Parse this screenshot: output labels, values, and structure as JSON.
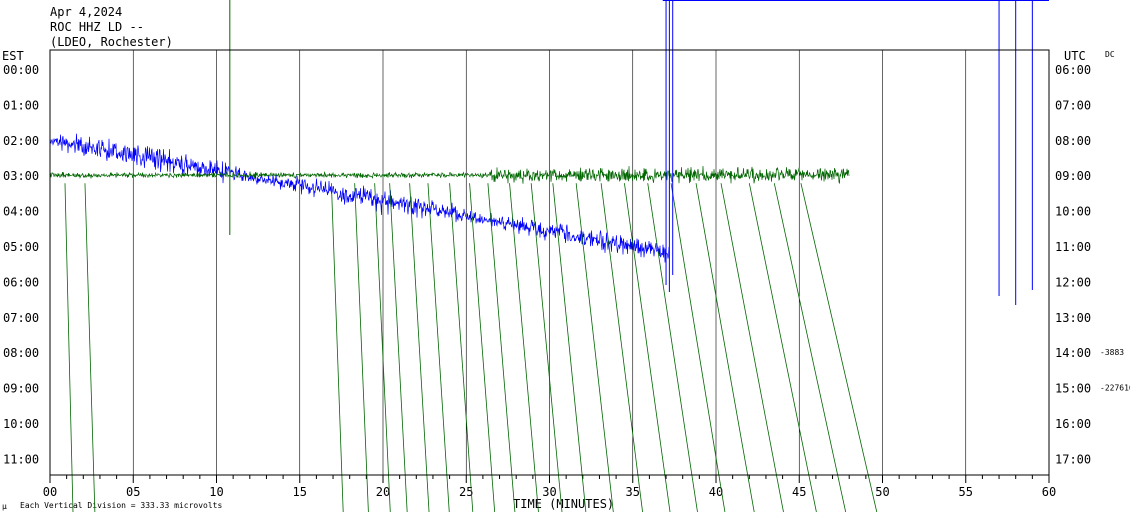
{
  "header": {
    "date": "Apr 4,2024",
    "station": "ROC HHZ LD --",
    "network": "(LDEO, Rochester)"
  },
  "colors": {
    "trace_a": "#0000ff",
    "trace_b": "#006600",
    "grid": "#000000",
    "background": "#ffffff"
  },
  "chart_data": {
    "type": "line",
    "title": "",
    "xlabel": "TIME (MINUTES)",
    "ylabel_left": "EST",
    "ylabel_right": "UTC",
    "dc_label": "DC",
    "footer": "Each Vertical Division =  333.33 microvolts",
    "footer_mark": "µ",
    "xlim": [
      0,
      60
    ],
    "x_ticks": [
      "00",
      "05",
      "10",
      "15",
      "20",
      "25",
      "30",
      "35",
      "40",
      "45",
      "50",
      "55",
      "60"
    ],
    "y_ticks_left": [
      "00:00",
      "01:00",
      "02:00",
      "03:00",
      "04:00",
      "05:00",
      "06:00",
      "07:00",
      "08:00",
      "09:00",
      "10:00",
      "11:00"
    ],
    "y_ticks_right": [
      "06:00",
      "07:00",
      "08:00",
      "09:00",
      "10:00",
      "11:00",
      "12:00",
      "13:00",
      "14:00",
      "15:00",
      "16:00",
      "17:00"
    ],
    "dc_offsets": [
      {
        "row": "08:00",
        "value": "-3883"
      },
      {
        "row": "09:00",
        "value": "-2276160"
      }
    ],
    "grid": true,
    "series": [
      {
        "name": "",
        "color": "#0000ff",
        "start_row": "02:00",
        "end_minute": 37.2,
        "drift_rows": 3.2,
        "amplitude_rows": 0.5
      },
      {
        "name": "",
        "color": "#006600",
        "start_row": "03:00",
        "end_minute": 48.0,
        "drift_rows": 0,
        "amplitude_rows": 0.35
      }
    ]
  }
}
